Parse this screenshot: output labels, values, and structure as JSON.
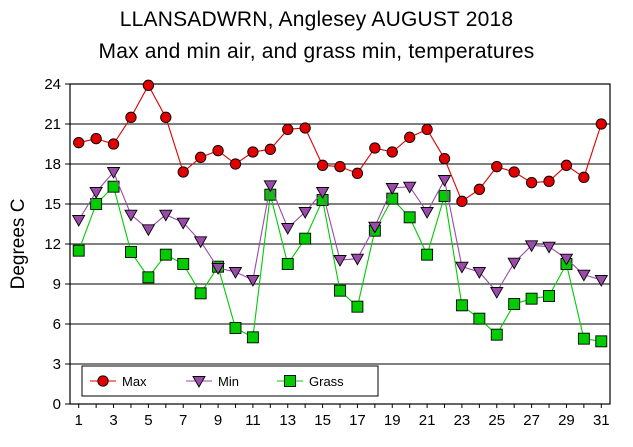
{
  "chart_data": {
    "type": "line",
    "title": "LLANSADWRN, Anglesey AUGUST 2018",
    "subtitle": "Max and min air, and grass min, temperatures",
    "xlabel": "",
    "ylabel": "Degrees C",
    "xlim": [
      0.5,
      31.5
    ],
    "ylim": [
      0,
      24
    ],
    "x_ticks": [
      1,
      3,
      5,
      7,
      9,
      11,
      13,
      15,
      17,
      19,
      21,
      23,
      25,
      27,
      29,
      31
    ],
    "y_ticks": [
      0,
      3,
      6,
      9,
      12,
      15,
      18,
      21,
      24
    ],
    "grid": "horizontal",
    "legend_position": "bottom-left",
    "x": [
      1,
      2,
      3,
      4,
      5,
      6,
      7,
      8,
      9,
      10,
      11,
      12,
      13,
      14,
      15,
      16,
      17,
      18,
      19,
      20,
      21,
      22,
      23,
      24,
      25,
      26,
      27,
      28,
      29,
      30,
      31
    ],
    "series": [
      {
        "name": "Max",
        "color": "#e00000",
        "marker": "circle",
        "values": [
          19.6,
          19.9,
          19.5,
          21.5,
          23.9,
          21.5,
          17.4,
          18.5,
          19.0,
          18.0,
          18.9,
          19.1,
          20.6,
          20.7,
          17.9,
          17.8,
          17.3,
          19.2,
          18.9,
          20.0,
          20.6,
          18.4,
          15.2,
          16.1,
          17.8,
          17.4,
          16.6,
          16.7,
          17.9,
          17.0,
          21.0
        ]
      },
      {
        "name": "Min",
        "color": "#9a4aa8",
        "marker": "triangle-down",
        "values": [
          13.8,
          15.9,
          17.4,
          14.2,
          13.1,
          14.2,
          13.6,
          12.2,
          10.2,
          9.9,
          9.3,
          16.4,
          13.2,
          14.4,
          15.9,
          10.8,
          10.9,
          13.3,
          16.2,
          16.3,
          14.4,
          16.8,
          10.3,
          9.9,
          8.4,
          10.6,
          11.9,
          11.8,
          10.9,
          9.7,
          9.3
        ]
      },
      {
        "name": "Grass",
        "color": "#00cc00",
        "marker": "square",
        "values": [
          11.5,
          15.0,
          16.3,
          11.4,
          9.5,
          11.2,
          10.5,
          8.3,
          10.3,
          5.7,
          5.0,
          15.7,
          10.5,
          12.4,
          15.3,
          8.5,
          7.3,
          13.0,
          15.4,
          14.0,
          11.2,
          15.6,
          7.4,
          6.4,
          5.2,
          7.5,
          7.9,
          8.1,
          10.5,
          4.9,
          4.7
        ]
      }
    ]
  }
}
